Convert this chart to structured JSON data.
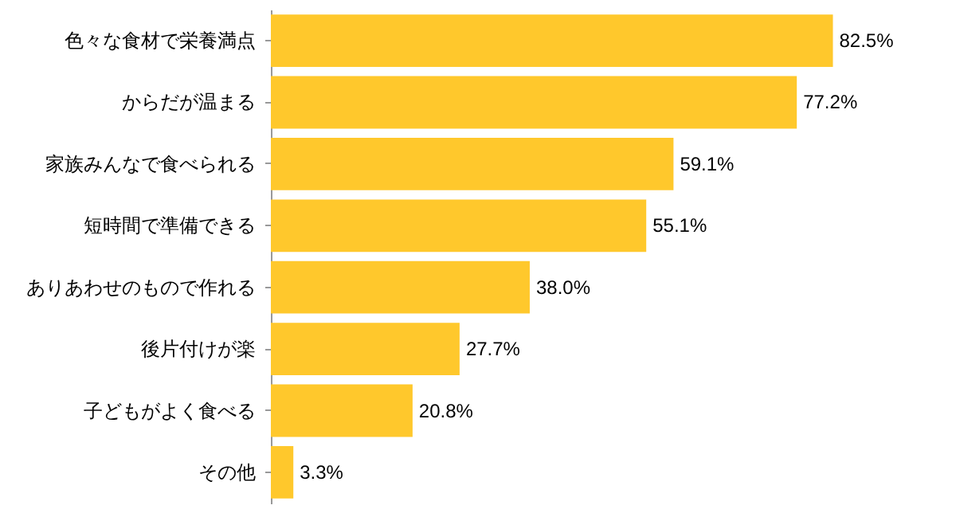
{
  "chart_data": {
    "type": "bar",
    "orientation": "horizontal",
    "categories": [
      "色々な食材で栄養満点",
      "からだが温まる",
      "家族みんなで食べられる",
      "短時間で準備できる",
      "ありあわせのもので作れる",
      "後片付けが楽",
      "子どもがよく食べる",
      "その他"
    ],
    "values": [
      82.5,
      77.2,
      59.1,
      55.1,
      38.0,
      27.7,
      20.8,
      3.3
    ],
    "value_labels": [
      "82.5%",
      "77.2%",
      "59.1%",
      "55.1%",
      "38.0%",
      "27.7%",
      "20.8%",
      "3.3%"
    ],
    "color": "#ffc82c"
  }
}
